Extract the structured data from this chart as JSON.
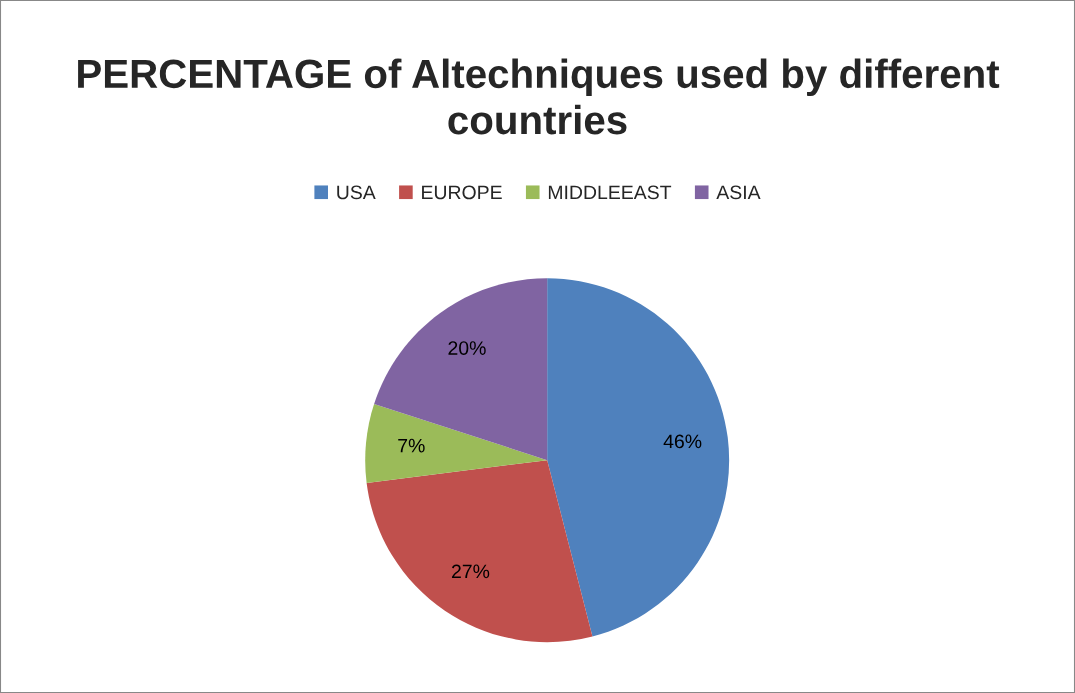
{
  "chart_data": {
    "type": "pie",
    "title": "PERCENTAGE of Altechniques used by different countries",
    "categories": [
      "USA",
      "EUROPE",
      "MIDDLEEAST",
      "ASIA"
    ],
    "values": [
      46,
      27,
      7,
      20
    ],
    "colors": [
      "#4f81bd",
      "#c0504d",
      "#9bbb59",
      "#8064a2"
    ],
    "value_labels": [
      "46%",
      "27%",
      "7%",
      "20%"
    ],
    "legend": "top"
  }
}
